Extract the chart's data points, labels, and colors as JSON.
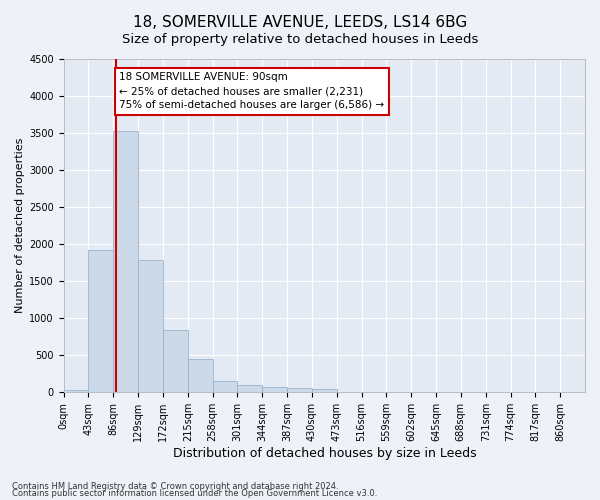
{
  "title1": "18, SOMERVILLE AVENUE, LEEDS, LS14 6BG",
  "title2": "Size of property relative to detached houses in Leeds",
  "xlabel": "Distribution of detached houses by size in Leeds",
  "ylabel": "Number of detached properties",
  "bin_labels": [
    "0sqm",
    "43sqm",
    "86sqm",
    "129sqm",
    "172sqm",
    "215sqm",
    "258sqm",
    "301sqm",
    "344sqm",
    "387sqm",
    "430sqm",
    "473sqm",
    "516sqm",
    "559sqm",
    "602sqm",
    "645sqm",
    "688sqm",
    "731sqm",
    "774sqm",
    "817sqm",
    "860sqm"
  ],
  "bar_values": [
    30,
    1920,
    3530,
    1780,
    840,
    450,
    150,
    100,
    70,
    55,
    40,
    0,
    0,
    0,
    0,
    0,
    0,
    0,
    0,
    0,
    0
  ],
  "bar_color": "#ccd9e8",
  "bar_edgecolor": "#9ab4cc",
  "property_line_color": "#cc0000",
  "annotation_line1": "18 SOMERVILLE AVENUE: 90sqm",
  "annotation_line2": "← 25% of detached houses are smaller (2,231)",
  "annotation_line3": "75% of semi-detached houses are larger (6,586) →",
  "annotation_box_color": "#ffffff",
  "annotation_box_edgecolor": "#cc0000",
  "ylim": [
    0,
    4500
  ],
  "yticks": [
    0,
    500,
    1000,
    1500,
    2000,
    2500,
    3000,
    3500,
    4000,
    4500
  ],
  "footnote1": "Contains HM Land Registry data © Crown copyright and database right 2024.",
  "footnote2": "Contains public sector information licensed under the Open Government Licence v3.0.",
  "background_color": "#eef2f8",
  "plot_background": "#e4eaf4",
  "grid_color": "#ffffff",
  "title1_fontsize": 11,
  "title2_fontsize": 9.5,
  "tick_fontsize": 7,
  "ylabel_fontsize": 8,
  "xlabel_fontsize": 9,
  "annotation_fontsize": 7.5,
  "footnote_fontsize": 6
}
